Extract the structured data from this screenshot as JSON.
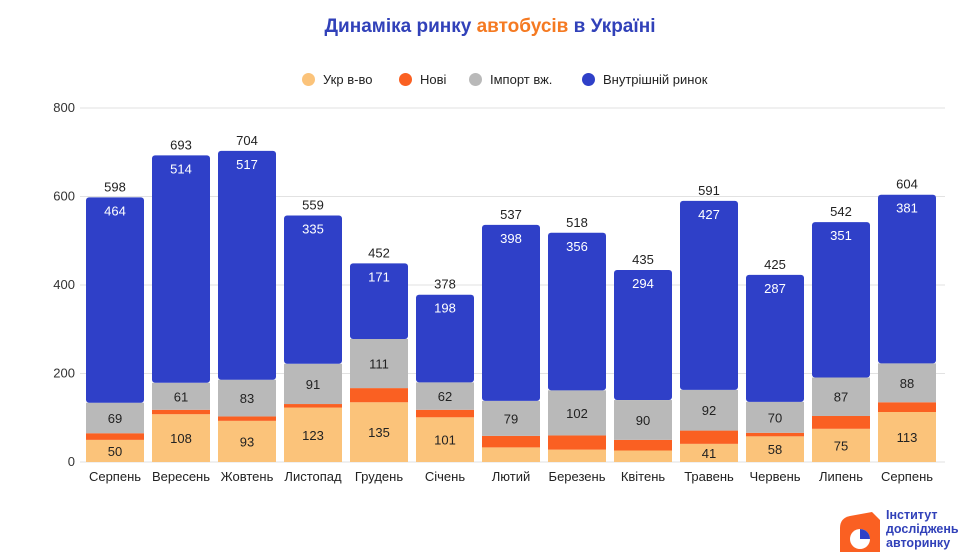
{
  "title": {
    "part1": "Динаміка ринку ",
    "part2": "автобусів",
    "part3": " в Україні"
  },
  "colors": {
    "ukr": "#fbc37a",
    "new": "#fa6022",
    "import": "#b9b9b9",
    "internal": "#2f40c8",
    "title_blue": "#3141b9",
    "title_orange": "#f57a22"
  },
  "logo": {
    "line1": "Інститут",
    "line2": "досліджень",
    "line3": "авторинку",
    "icon": "pie-logo-icon"
  },
  "chart_data": {
    "type": "bar",
    "stacked": true,
    "categories": [
      "Серпень",
      "Вересень",
      "Жовтень",
      "Листопад",
      "Грудень",
      "Січень",
      "Лютий",
      "Березень",
      "Квітень",
      "Травень",
      "Червень",
      "Липень",
      "Серпень"
    ],
    "series": [
      {
        "name": "Укр в-во",
        "values": [
          50,
          108,
          93,
          123,
          135,
          101,
          33,
          28,
          26,
          41,
          58,
          75,
          113
        ]
      },
      {
        "name": "Нові",
        "values": [
          15,
          10,
          10,
          8,
          32,
          17,
          26,
          32,
          24,
          30,
          8,
          29,
          22
        ]
      },
      {
        "name": "Імпорт вж.",
        "values": [
          69,
          61,
          83,
          91,
          111,
          62,
          79,
          102,
          90,
          92,
          70,
          87,
          88
        ]
      },
      {
        "name": "Внутрішній ринок",
        "values": [
          464,
          514,
          517,
          335,
          171,
          198,
          398,
          356,
          294,
          427,
          287,
          351,
          381
        ]
      }
    ],
    "segment_labels": {
      "Укр в-во": [
        "50",
        "108",
        "93",
        "123",
        "135",
        "101",
        "",
        "",
        "",
        "41",
        "58",
        "75",
        "113"
      ],
      "Імпорт вж.": [
        "69",
        "61",
        "83",
        "91",
        "111",
        "62",
        "79",
        "102",
        "90",
        "92",
        "70",
        "87",
        "88"
      ],
      "Внутрішній ринок": [
        "464",
        "514",
        "517",
        "335",
        "171",
        "198",
        "398",
        "356",
        "294",
        "427",
        "287",
        "351",
        "381"
      ]
    },
    "totals": [
      598,
      693,
      704,
      559,
      452,
      378,
      537,
      518,
      435,
      591,
      425,
      542,
      604
    ],
    "ylim": [
      0,
      800
    ],
    "yticks": [
      "0",
      "200",
      "400",
      "600",
      "800"
    ],
    "grid": true,
    "legend_position": "top"
  }
}
